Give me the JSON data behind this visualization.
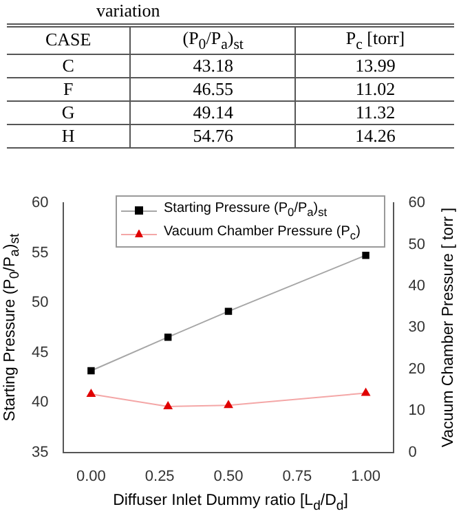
{
  "chart_data": {
    "type": "line",
    "annotations": [
      "variation",
      "CASE",
      "(P$_{0}$/P$_{a}$)$_{st}$",
      "P$_{c}$ [torr]",
      "C",
      "43.18",
      "13.99",
      "F",
      "46.55",
      "11.02",
      "G",
      "49.14",
      "11.32",
      "H",
      "54.76",
      "14.26"
    ],
    "xlabel": "Diffuser Inlet Dummy ratio [L$_{d}$/D$_{d}$]",
    "ylabel": "Starting Pressure (P$_{0}$/P$_{a}$)$_{st}$",
    "y2label": "Vacuum Chamber Pressure [ torr ]",
    "x": [
      0,
      0.28,
      0.5,
      1.0
    ],
    "series": [
      {
        "name": "Starting Pressure (P$_{0}$/P$_{a}$)$_{st}$",
        "color": "#000000",
        "values": [
          43.18,
          46.55,
          49.14,
          54.76
        ],
        "marker": "square"
      },
      {
        "name": "Vacuum Chamber Pressure (P$_{c}$)",
        "color": "#e00000",
        "values": [
          13.99,
          11.02,
          11.32,
          14.26
        ],
        "marker": "triangle",
        "axis": "y2"
      }
    ],
    "xlim": [
      -0.1,
      1.1
    ],
    "xticks": [
      {
        "value": 0,
        "label": "0.00"
      },
      {
        "value": 0.25,
        "label": "0.25"
      },
      {
        "value": 0.5,
        "label": "0.50"
      },
      {
        "value": 0.75,
        "label": "0.75"
      },
      {
        "value": 1,
        "label": "1.00"
      }
    ],
    "ylim": [
      35,
      60
    ],
    "yticks": [
      35,
      40,
      45,
      50,
      55,
      60
    ],
    "y2lim": [
      0,
      60
    ],
    "y2ticks": [
      0,
      10,
      20,
      30,
      40,
      50,
      60
    ],
    "legend": "top right",
    "grid": false
  }
}
